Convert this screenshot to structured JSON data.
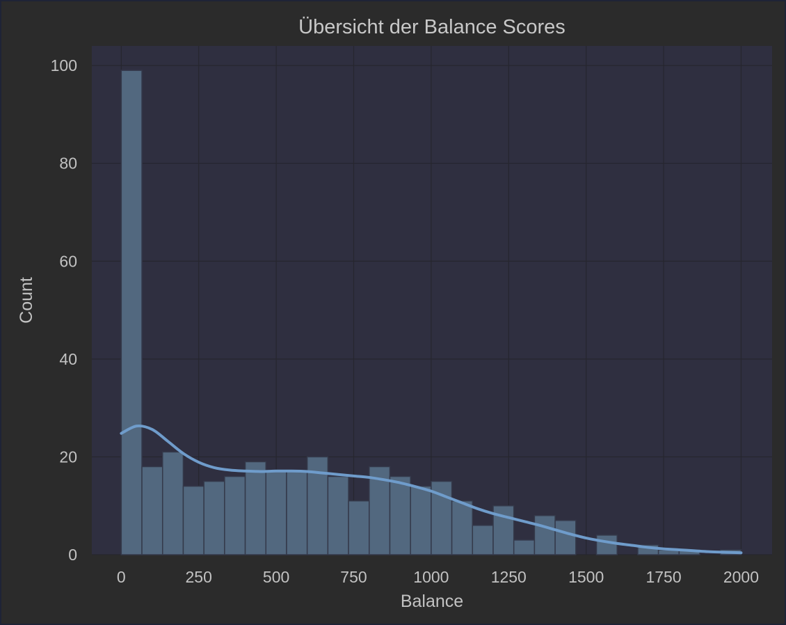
{
  "chart_data": {
    "type": "bar",
    "title": "Übersicht der Balance Scores",
    "xlabel": "Balance",
    "ylabel": "Count",
    "xlim": [
      -95,
      2100
    ],
    "ylim": [
      0,
      104
    ],
    "xticks": [
      "0",
      "250",
      "500",
      "750",
      "1000",
      "1250",
      "1500",
      "1750",
      "2000"
    ],
    "yticks": [
      "0",
      "20",
      "40",
      "60",
      "80",
      "100"
    ],
    "grid": true,
    "bin_width": 66.67,
    "series": [
      {
        "kind": "histogram",
        "bins": [
          {
            "x0": 0,
            "x1": 66.67,
            "count": 99
          },
          {
            "x0": 66.67,
            "x1": 133.33,
            "count": 18
          },
          {
            "x0": 133.33,
            "x1": 200,
            "count": 21
          },
          {
            "x0": 200,
            "x1": 266.67,
            "count": 14
          },
          {
            "x0": 266.67,
            "x1": 333.33,
            "count": 15
          },
          {
            "x0": 333.33,
            "x1": 400,
            "count": 16
          },
          {
            "x0": 400,
            "x1": 466.67,
            "count": 19
          },
          {
            "x0": 466.67,
            "x1": 533.33,
            "count": 17
          },
          {
            "x0": 533.33,
            "x1": 600,
            "count": 17
          },
          {
            "x0": 600,
            "x1": 666.67,
            "count": 20
          },
          {
            "x0": 666.67,
            "x1": 733.33,
            "count": 16
          },
          {
            "x0": 733.33,
            "x1": 800,
            "count": 11
          },
          {
            "x0": 800,
            "x1": 866.67,
            "count": 18
          },
          {
            "x0": 866.67,
            "x1": 933.33,
            "count": 16
          },
          {
            "x0": 933.33,
            "x1": 1000,
            "count": 14
          },
          {
            "x0": 1000,
            "x1": 1066.67,
            "count": 15
          },
          {
            "x0": 1066.67,
            "x1": 1133.33,
            "count": 11
          },
          {
            "x0": 1133.33,
            "x1": 1200,
            "count": 6
          },
          {
            "x0": 1200,
            "x1": 1266.67,
            "count": 10
          },
          {
            "x0": 1266.67,
            "x1": 1333.33,
            "count": 3
          },
          {
            "x0": 1333.33,
            "x1": 1400,
            "count": 8
          },
          {
            "x0": 1400,
            "x1": 1466.67,
            "count": 7
          },
          {
            "x0": 1466.67,
            "x1": 1533.33,
            "count": 0
          },
          {
            "x0": 1533.33,
            "x1": 1600,
            "count": 4
          },
          {
            "x0": 1600,
            "x1": 1666.67,
            "count": 0
          },
          {
            "x0": 1666.67,
            "x1": 1733.33,
            "count": 2
          },
          {
            "x0": 1733.33,
            "x1": 1800,
            "count": 1
          },
          {
            "x0": 1800,
            "x1": 1866.67,
            "count": 1
          },
          {
            "x0": 1866.67,
            "x1": 1933.33,
            "count": 0
          },
          {
            "x0": 1933.33,
            "x1": 2000,
            "count": 1
          }
        ],
        "color": "#52687f"
      },
      {
        "kind": "kde",
        "x": [
          0,
          50,
          100,
          150,
          200,
          250,
          300,
          350,
          400,
          450,
          500,
          550,
          600,
          650,
          700,
          750,
          800,
          850,
          900,
          950,
          1000,
          1050,
          1100,
          1150,
          1200,
          1250,
          1300,
          1350,
          1400,
          1450,
          1500,
          1550,
          1600,
          1650,
          1700,
          1750,
          1800,
          1850,
          1900,
          1950,
          2000
        ],
        "y": [
          24.8,
          26.3,
          25.6,
          23.2,
          20.7,
          18.9,
          17.8,
          17.3,
          17.1,
          17.0,
          17.1,
          17.1,
          17.0,
          16.7,
          16.4,
          16.1,
          15.8,
          15.3,
          14.7,
          13.9,
          13.0,
          11.8,
          10.6,
          9.4,
          8.4,
          7.6,
          6.8,
          6.0,
          5.1,
          4.2,
          3.4,
          2.8,
          2.3,
          1.9,
          1.5,
          1.2,
          1.0,
          0.8,
          0.6,
          0.5,
          0.4
        ],
        "color": "#6f9ccb"
      }
    ],
    "colors": {
      "figure_bg": "#2b2b2b",
      "axes_bg": "#2f2f40",
      "grid": "#26262e",
      "text": "#c2c2c2"
    }
  }
}
